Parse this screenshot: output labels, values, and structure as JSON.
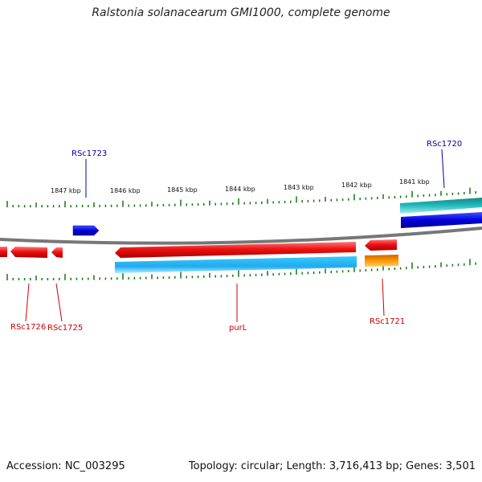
{
  "title": "Ralstonia solanacearum GMI1000, complete genome",
  "footer": {
    "accession": "Accession: NC_003295",
    "summary": "Topology: circular; Length: 3,716,413 bp; Genes: 3,501"
  },
  "scale_labels": [
    "1847 kbp",
    "1846 kbp",
    "1845 kbp",
    "1844 kbp",
    "1843 kbp",
    "1842 kbp",
    "1841 kbp"
  ],
  "gene_labels": {
    "RSc1723": "RSc1723",
    "RSc1720": "RSc1720",
    "RSc1726": "RSc1726",
    "RSc1725": "RSc1725",
    "purL": "purL",
    "RSc1721": "RSc1721"
  },
  "colors": {
    "red": "#ee1111",
    "blue": "#0000dd",
    "cyan": "#22bbee",
    "teal": "#11aaaa",
    "orange": "#ff9900",
    "tick": "#117711",
    "backbone": "#808080",
    "label_red": "#cc0000",
    "label_blue": "#0000aa"
  }
}
